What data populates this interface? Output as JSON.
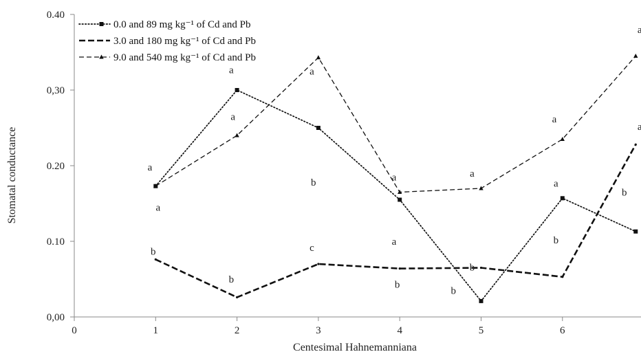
{
  "chart_data": {
    "type": "line",
    "xlabel": "Centesimal Hahnemanniana",
    "ylabel": "Stomatal conductance",
    "xlim": [
      0,
      6.9
    ],
    "ylim": [
      0,
      0.4
    ],
    "x_ticks": [
      "0",
      "1",
      "2",
      "3",
      "4",
      "5",
      "6"
    ],
    "y_ticks": [
      "0,00",
      "0.10",
      "0.20",
      "0,30",
      "0.40"
    ],
    "legend_position": "top-left",
    "series": [
      {
        "name": "0.0 and 89 mg kg⁻¹ of Cd and Pb",
        "style": "dotted",
        "marker": "square",
        "x": [
          1,
          2,
          3,
          4,
          5,
          6,
          6.9
        ],
        "y": [
          0.173,
          0.3,
          0.25,
          0.155,
          0.021,
          0.157,
          0.113
        ],
        "letters": [
          "a",
          "a",
          "b",
          "a",
          "b",
          "a",
          "b"
        ]
      },
      {
        "name": "3.0 and 180 mg kg⁻¹ of Cd and Pb",
        "style": "heavy-dash",
        "marker": "none",
        "x": [
          1,
          2,
          3,
          4,
          5,
          6,
          6.9
        ],
        "y": [
          0.076,
          0.026,
          0.07,
          0.064,
          0.065,
          0.053,
          0.228
        ],
        "letters": [
          "b",
          "b",
          "c",
          "b",
          "b",
          "b",
          "a"
        ]
      },
      {
        "name": "9.0 and 540 mg kg⁻¹ of Cd and Pb",
        "style": "light-dash",
        "marker": "triangle",
        "x": [
          1,
          2,
          3,
          4,
          5,
          6,
          6.9
        ],
        "y": [
          0.173,
          0.24,
          0.343,
          0.165,
          0.17,
          0.235,
          0.345
        ],
        "letters": [
          "a",
          "a",
          "a",
          "a",
          "a",
          "a",
          "a"
        ]
      }
    ],
    "annotations": [
      {
        "text": "a",
        "x": 0.93,
        "y": 0.198
      },
      {
        "text": "a",
        "x": 1.03,
        "y": 0.145
      },
      {
        "text": "b",
        "x": 0.97,
        "y": 0.087
      },
      {
        "text": "a",
        "x": 1.93,
        "y": 0.327
      },
      {
        "text": "a",
        "x": 1.95,
        "y": 0.265
      },
      {
        "text": "b",
        "x": 1.93,
        "y": 0.05
      },
      {
        "text": "a",
        "x": 2.92,
        "y": 0.325
      },
      {
        "text": "b",
        "x": 2.94,
        "y": 0.178
      },
      {
        "text": "c",
        "x": 2.92,
        "y": 0.092
      },
      {
        "text": "a",
        "x": 3.93,
        "y": 0.185
      },
      {
        "text": "a",
        "x": 3.93,
        "y": 0.1
      },
      {
        "text": "b",
        "x": 3.97,
        "y": 0.043
      },
      {
        "text": "a",
        "x": 4.89,
        "y": 0.19
      },
      {
        "text": "b",
        "x": 4.89,
        "y": 0.066
      },
      {
        "text": "b",
        "x": 4.66,
        "y": 0.035
      },
      {
        "text": "a",
        "x": 5.9,
        "y": 0.262
      },
      {
        "text": "a",
        "x": 5.92,
        "y": 0.177
      },
      {
        "text": "b",
        "x": 5.92,
        "y": 0.102
      },
      {
        "text": "a",
        "x": 6.95,
        "y": 0.38
      },
      {
        "text": "a",
        "x": 6.95,
        "y": 0.252
      },
      {
        "text": "b",
        "x": 6.76,
        "y": 0.165
      }
    ]
  }
}
